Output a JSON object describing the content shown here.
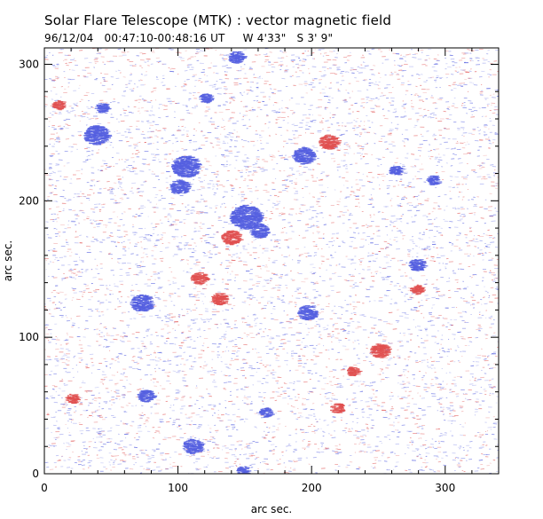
{
  "chart_data": {
    "type": "heatmap",
    "title": "Solar Flare Telescope (MTK) : vector magnetic field",
    "subtitle": "96/12/04   00:47:10-00:48:16 UT     W 4'33\"   S 3' 9\"",
    "xlabel": "arc sec.",
    "ylabel": "arc sec.",
    "xlim": [
      0,
      340
    ],
    "ylim": [
      0,
      312
    ],
    "xticks": [
      0,
      100,
      200,
      300
    ],
    "yticks": [
      0,
      100,
      200,
      300
    ],
    "colors": {
      "negative_polarity": "#5560e0",
      "positive_polarity": "#e05050",
      "background": "#ffffff",
      "frame": "#000000"
    },
    "blue_patches": [
      {
        "x": 150,
        "y": 188,
        "r": 10
      },
      {
        "x": 160,
        "y": 178,
        "r": 6
      },
      {
        "x": 105,
        "y": 225,
        "r": 9
      },
      {
        "x": 100,
        "y": 210,
        "r": 6
      },
      {
        "x": 38,
        "y": 248,
        "r": 8
      },
      {
        "x": 72,
        "y": 125,
        "r": 7
      },
      {
        "x": 193,
        "y": 233,
        "r": 7
      },
      {
        "x": 196,
        "y": 118,
        "r": 6
      },
      {
        "x": 278,
        "y": 153,
        "r": 5
      },
      {
        "x": 262,
        "y": 222,
        "r": 4
      },
      {
        "x": 290,
        "y": 215,
        "r": 4
      },
      {
        "x": 75,
        "y": 57,
        "r": 5
      },
      {
        "x": 110,
        "y": 20,
        "r": 6
      },
      {
        "x": 143,
        "y": 305,
        "r": 5
      },
      {
        "x": 120,
        "y": 275,
        "r": 4
      },
      {
        "x": 42,
        "y": 268,
        "r": 4
      },
      {
        "x": 165,
        "y": 45,
        "r": 4
      },
      {
        "x": 148,
        "y": 2,
        "r": 4
      }
    ],
    "red_patches": [
      {
        "x": 212,
        "y": 243,
        "r": 6
      },
      {
        "x": 139,
        "y": 173,
        "r": 6
      },
      {
        "x": 115,
        "y": 143,
        "r": 5
      },
      {
        "x": 130,
        "y": 128,
        "r": 5
      },
      {
        "x": 250,
        "y": 90,
        "r": 6
      },
      {
        "x": 20,
        "y": 55,
        "r": 4
      },
      {
        "x": 218,
        "y": 48,
        "r": 4
      },
      {
        "x": 278,
        "y": 135,
        "r": 4
      },
      {
        "x": 10,
        "y": 270,
        "r": 4
      },
      {
        "x": 230,
        "y": 75,
        "r": 4
      }
    ]
  }
}
